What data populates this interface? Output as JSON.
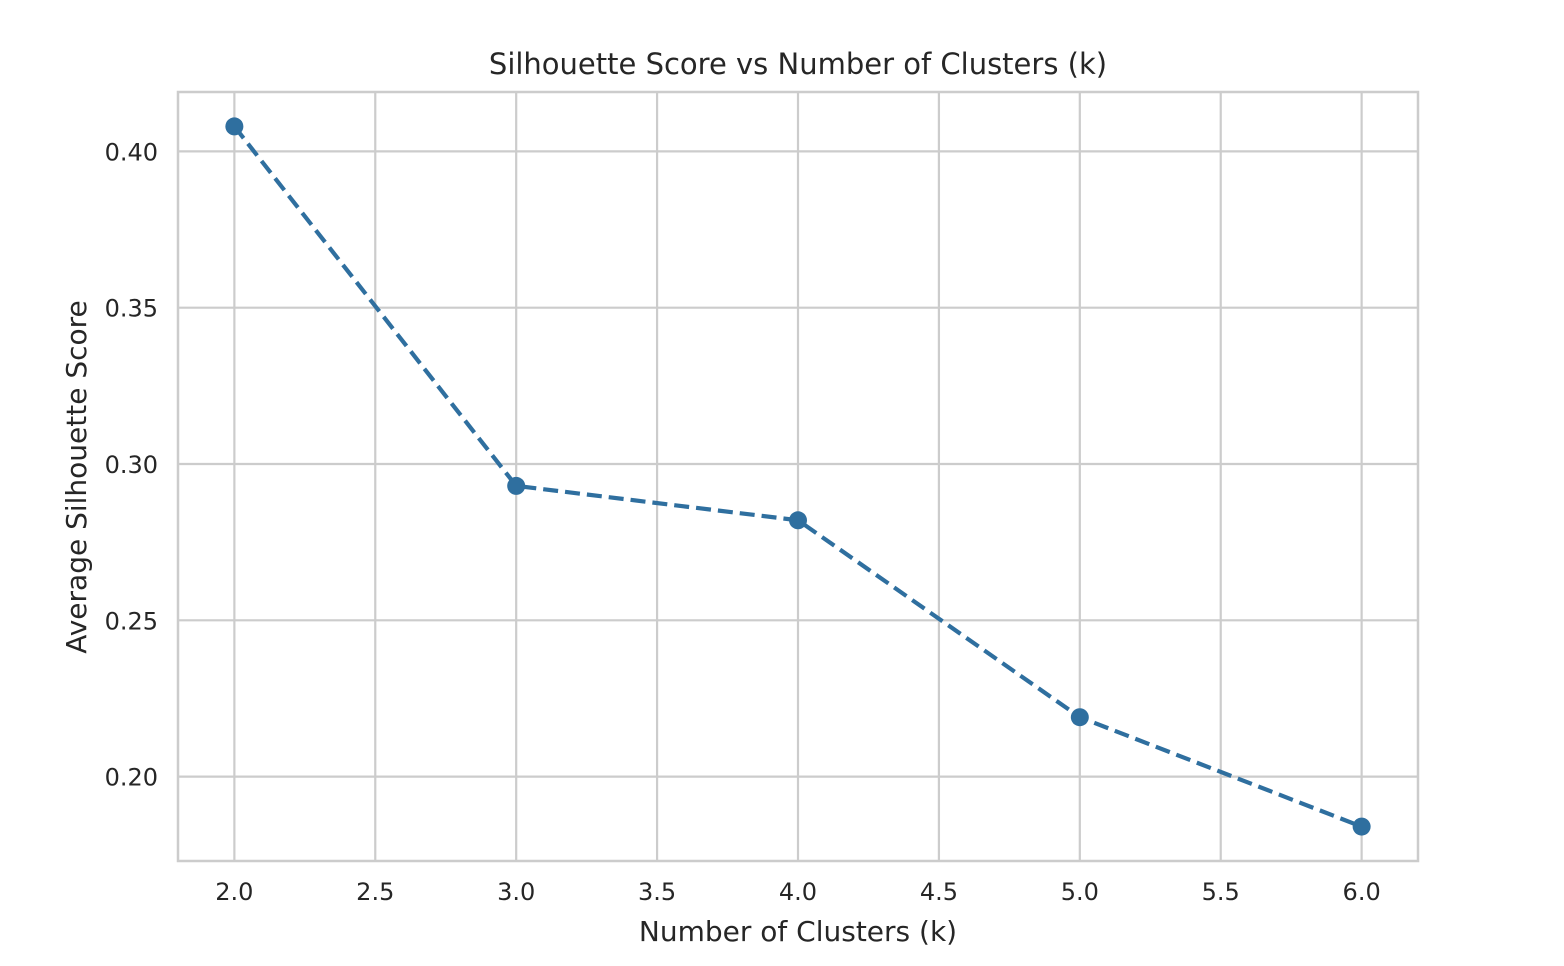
{
  "chart_data": {
    "type": "line",
    "title": "Silhouette Score vs Number of Clusters (k)",
    "xlabel": "Number of Clusters (k)",
    "ylabel": "Average Silhouette Score",
    "x": [
      2,
      3,
      4,
      5,
      6
    ],
    "series": [
      {
        "values": [
          0.408,
          0.293,
          0.282,
          0.219,
          0.184
        ],
        "color": "#2f6f9f",
        "line_style": "dashed",
        "marker": "circle"
      }
    ],
    "xlim": [
      1.8,
      6.2
    ],
    "ylim": [
      0.173,
      0.419
    ],
    "xticks": [
      2.0,
      2.5,
      3.0,
      3.5,
      4.0,
      4.5,
      5.0,
      5.5,
      6.0
    ],
    "xtick_labels": [
      "2.0",
      "2.5",
      "3.0",
      "3.5",
      "4.0",
      "4.5",
      "5.0",
      "5.5",
      "6.0"
    ],
    "yticks": [
      0.2,
      0.25,
      0.3,
      0.35,
      0.4
    ],
    "ytick_labels": [
      "0.20",
      "0.25",
      "0.30",
      "0.35",
      "0.40"
    ],
    "grid": true,
    "grid_color": "#cccccc",
    "background": "#ffffff"
  }
}
